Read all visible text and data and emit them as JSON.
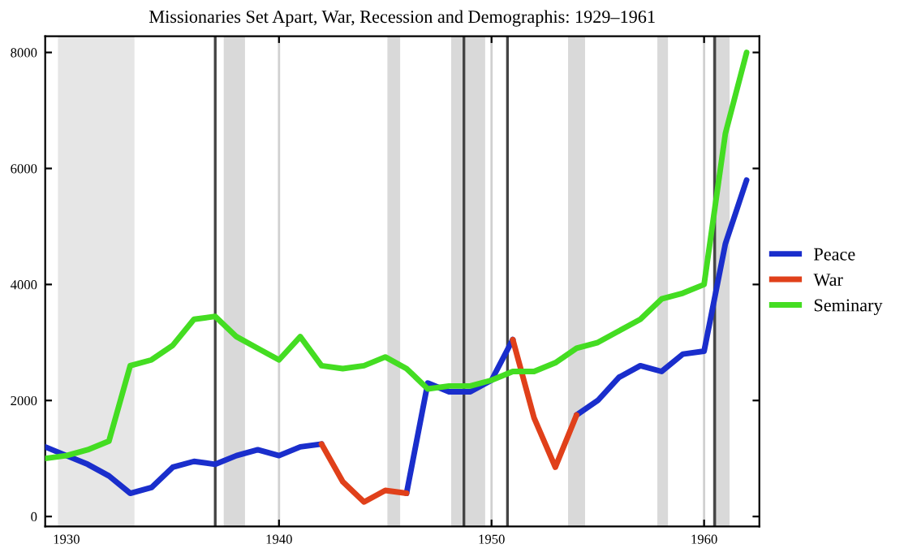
{
  "chart_data": {
    "type": "line",
    "title": "Missionaries Set Apart, War, Recession and Demographis: 1929–1961",
    "x": [
      1929,
      1930,
      1931,
      1932,
      1933,
      1934,
      1935,
      1936,
      1937,
      1938,
      1939,
      1940,
      1941,
      1942,
      1943,
      1944,
      1945,
      1946,
      1947,
      1948,
      1949,
      1950,
      1951,
      1952,
      1953,
      1954,
      1955,
      1956,
      1957,
      1958,
      1959,
      1960,
      1961,
      1962
    ],
    "series": [
      {
        "name": "Peace",
        "color": "#1a2ecc",
        "values": [
          1200,
          1050,
          900,
          700,
          400,
          500,
          850,
          950,
          900,
          1050,
          1150,
          1050,
          1200,
          1250,
          null,
          null,
          null,
          400,
          2300,
          2150,
          2150,
          2350,
          3050,
          null,
          null,
          1750,
          2000,
          2400,
          2600,
          2500,
          2800,
          2850,
          4700,
          5800
        ]
      },
      {
        "name": "War",
        "color": "#e0401a",
        "values": [
          null,
          null,
          null,
          null,
          null,
          null,
          null,
          null,
          null,
          null,
          null,
          null,
          null,
          1250,
          600,
          250,
          450,
          400,
          null,
          null,
          null,
          null,
          3050,
          1700,
          850,
          1750,
          null,
          null,
          null,
          null,
          null,
          null,
          null,
          null
        ]
      },
      {
        "name": "Seminary",
        "color": "#44dd22",
        "values": [
          1000,
          1050,
          1150,
          1300,
          2600,
          2700,
          2950,
          3400,
          3450,
          3100,
          2900,
          2700,
          3100,
          2600,
          2550,
          2600,
          2750,
          2550,
          2200,
          2250,
          2250,
          2350,
          2500,
          2500,
          2650,
          2900,
          3000,
          3200,
          3400,
          3750,
          3850,
          4000,
          6600,
          8000
        ]
      }
    ],
    "xlim": [
      1929,
      1962.6
    ],
    "ylim": [
      -170,
      8280
    ],
    "xticks": [
      1930,
      1940,
      1950,
      1960
    ],
    "yticks": [
      0,
      2000,
      4000,
      6000,
      8000
    ],
    "grid": "x",
    "legend": "right",
    "marker": "none",
    "line_style": "solid",
    "bands": [
      {
        "axis": "x",
        "from": 1929.6,
        "to": 1933.2,
        "color": "#e6e6e6"
      },
      {
        "axis": "x",
        "from": 1937.4,
        "to": 1938.4,
        "color": "#d9d9d9"
      },
      {
        "axis": "x",
        "from": 1945.1,
        "to": 1945.7,
        "color": "#d9d9d9"
      },
      {
        "axis": "x",
        "from": 1948.1,
        "to": 1949.7,
        "color": "#d9d9d9"
      },
      {
        "axis": "x",
        "from": 1953.6,
        "to": 1954.4,
        "color": "#d9d9d9"
      },
      {
        "axis": "x",
        "from": 1957.8,
        "to": 1958.3,
        "color": "#d9d9d9"
      },
      {
        "axis": "x",
        "from": 1960.4,
        "to": 1961.2,
        "color": "#d9d9d9"
      }
    ],
    "ref_lines": [
      {
        "axis": "x",
        "value": 1937.0,
        "color": "#444444"
      },
      {
        "axis": "x",
        "value": 1948.7,
        "color": "#444444"
      },
      {
        "axis": "x",
        "value": 1950.75,
        "color": "#444444"
      },
      {
        "axis": "x",
        "value": 1960.5,
        "color": "#444444"
      }
    ]
  }
}
